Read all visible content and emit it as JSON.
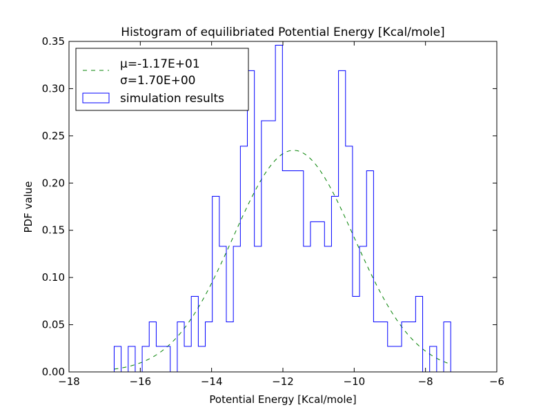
{
  "chart_data": {
    "type": "histogram",
    "title": "Histogram of equilibriated Potential Energy [Kcal/mole]",
    "xlabel": "Potential Energy [Kcal/mole]",
    "ylabel": "PDF value",
    "xlim": [
      -18,
      -6
    ],
    "ylim": [
      0,
      0.35
    ],
    "xticks": [
      -18,
      -16,
      -14,
      -12,
      -10,
      -8,
      -6
    ],
    "xtick_labels": [
      "−18",
      "−16",
      "−14",
      "−12",
      "−10",
      "−8",
      "−6"
    ],
    "yticks": [
      0.0,
      0.05,
      0.1,
      0.15,
      0.2,
      0.25,
      0.3,
      0.35
    ],
    "ytick_labels": [
      "0.00",
      "0.05",
      "0.10",
      "0.15",
      "0.20",
      "0.25",
      "0.30",
      "0.35"
    ],
    "grid": false,
    "legend_position": "top-left",
    "series": [
      {
        "name": "simulation results",
        "kind": "step-histogram",
        "color": "#0000ff",
        "bin_edges": [
          -16.733,
          -16.537,
          -16.34,
          -16.143,
          -15.947,
          -15.75,
          -15.553,
          -15.357,
          -15.16,
          -14.963,
          -14.767,
          -14.57,
          -14.373,
          -14.177,
          -13.98,
          -13.783,
          -13.587,
          -13.39,
          -13.193,
          -12.997,
          -12.8,
          -12.603,
          -12.407,
          -12.21,
          -12.013,
          -11.817,
          -11.62,
          -11.423,
          -11.227,
          -11.03,
          -10.833,
          -10.637,
          -10.44,
          -10.243,
          -10.047,
          -9.85,
          -9.653,
          -9.457,
          -9.26,
          -9.063,
          -8.867,
          -8.67,
          -8.473,
          -8.277,
          -8.08,
          -7.883,
          -7.687,
          -7.49,
          -7.293
        ],
        "values": [
          0.027,
          0.0,
          0.027,
          0.0,
          0.027,
          0.053,
          0.027,
          0.027,
          0.0,
          0.053,
          0.027,
          0.08,
          0.027,
          0.053,
          0.186,
          0.133,
          0.053,
          0.133,
          0.239,
          0.319,
          0.133,
          0.266,
          0.266,
          0.346,
          0.213,
          0.213,
          0.213,
          0.133,
          0.159,
          0.159,
          0.133,
          0.186,
          0.319,
          0.239,
          0.08,
          0.133,
          0.213,
          0.053,
          0.053,
          0.027,
          0.027,
          0.053,
          0.053,
          0.08,
          0.0,
          0.027,
          0.0,
          0.053
        ]
      },
      {
        "name": "μ=-1.17E+01 σ=1.70E+00",
        "kind": "normal-pdf-dashed",
        "color": "#008000",
        "mu": -11.7,
        "sigma": 1.7,
        "x_range": [
          -16.733,
          -7.293
        ]
      }
    ]
  },
  "legend": {
    "mu_line": "μ=-1.17E+01",
    "sigma_line": "σ=1.70E+00",
    "hist_label": "simulation results"
  }
}
